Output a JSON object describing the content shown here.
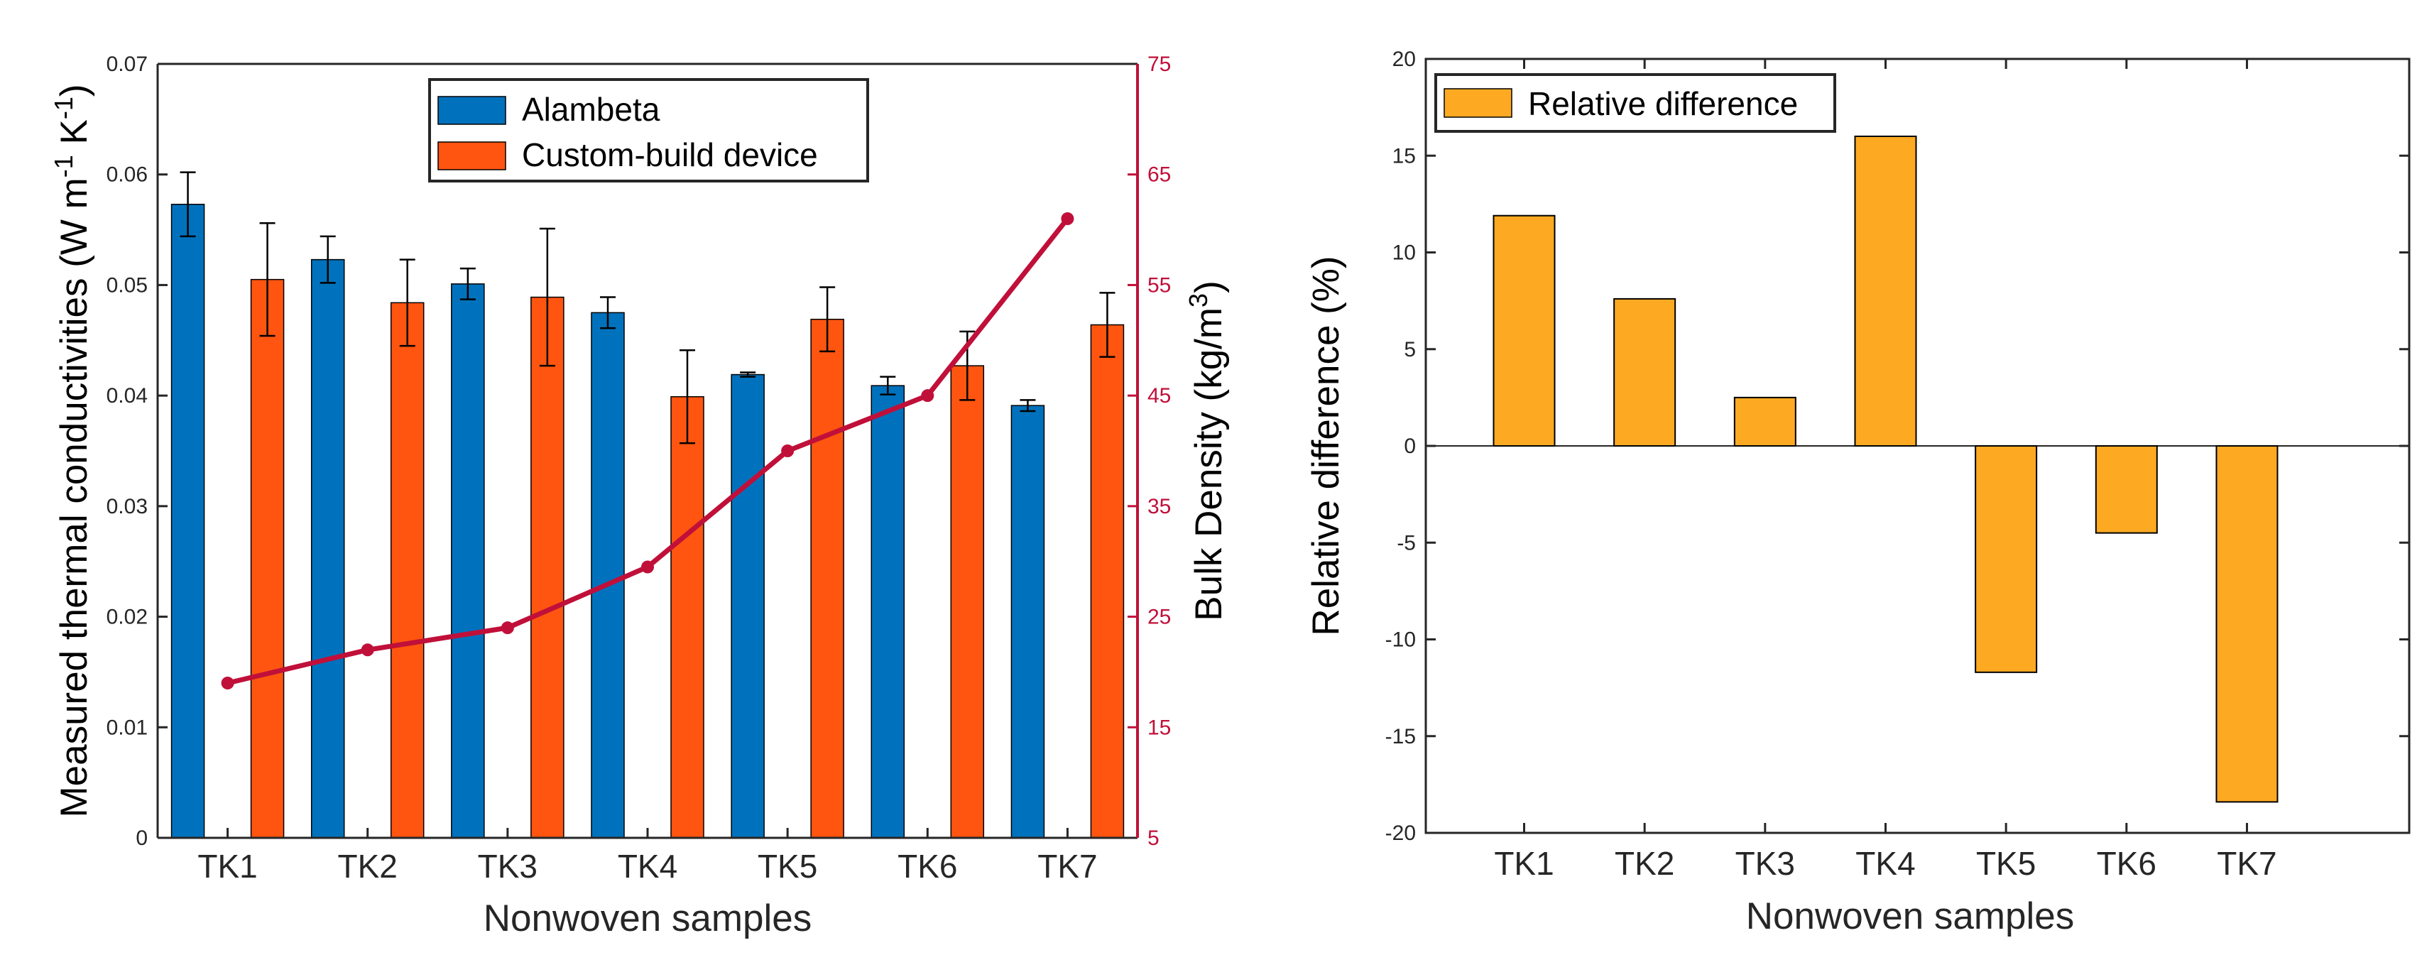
{
  "colors": {
    "alambeta": "#0072BD",
    "custom": "#FF5510",
    "density": "#C0103A",
    "relative": "#FDAA22",
    "axis": "#262626"
  },
  "chart_data": [
    {
      "type": "bar",
      "title": "",
      "categories": [
        "TK1",
        "TK2",
        "TK3",
        "TK4",
        "TK5",
        "TK6",
        "TK7"
      ],
      "xlabel": "Nonwoven samples",
      "ylabel_parts": {
        "main": "Measured thermal conductivities (W m",
        "exp1": "-1",
        "mid": " K",
        "exp2": "-1",
        "close": ")"
      },
      "ylim": [
        0,
        0.07
      ],
      "yticks": [
        "0",
        "0.01",
        "0.02",
        "0.03",
        "0.04",
        "0.05",
        "0.06",
        "0.07"
      ],
      "series": [
        {
          "name": "Alambeta",
          "values": [
            0.0573,
            0.0523,
            0.0501,
            0.0475,
            0.0419,
            0.0409,
            0.0391
          ],
          "errors": [
            0.0029,
            0.0021,
            0.0014,
            0.0014,
            0.0002,
            0.0008,
            0.0005
          ]
        },
        {
          "name": "Custom-build device",
          "values": [
            0.0505,
            0.0484,
            0.0489,
            0.0399,
            0.0469,
            0.0427,
            0.0464
          ],
          "errors": [
            0.0051,
            0.0039,
            0.0062,
            0.0042,
            0.0029,
            0.0031,
            0.0029
          ]
        }
      ],
      "secondary_axis": {
        "type": "line",
        "name": "Bulk Density",
        "ylabel_parts": {
          "main": "Bulk Density (kg/m",
          "exp": "3",
          "close": ")"
        },
        "ylim": [
          5,
          75
        ],
        "yticks": [
          "5",
          "15",
          "25",
          "35",
          "45",
          "55",
          "65",
          "75"
        ],
        "values": [
          19,
          22,
          24,
          29.5,
          40,
          45,
          61
        ]
      },
      "legend": "top-center"
    },
    {
      "type": "bar",
      "title": "",
      "categories": [
        "TK1",
        "TK2",
        "TK3",
        "TK4",
        "TK5",
        "TK6",
        "TK7"
      ],
      "xlabel": "Nonwoven samples",
      "ylabel": "Relative difference (%)",
      "ylim": [
        -20,
        20
      ],
      "yticks": [
        "-20",
        "-15",
        "-10",
        "-5",
        "0",
        "5",
        "10",
        "15",
        "20"
      ],
      "series": [
        {
          "name": "Relative difference",
          "values": [
            11.9,
            7.6,
            2.5,
            16.0,
            -11.7,
            -4.5,
            -18.4
          ]
        }
      ],
      "legend": "top-left"
    }
  ]
}
